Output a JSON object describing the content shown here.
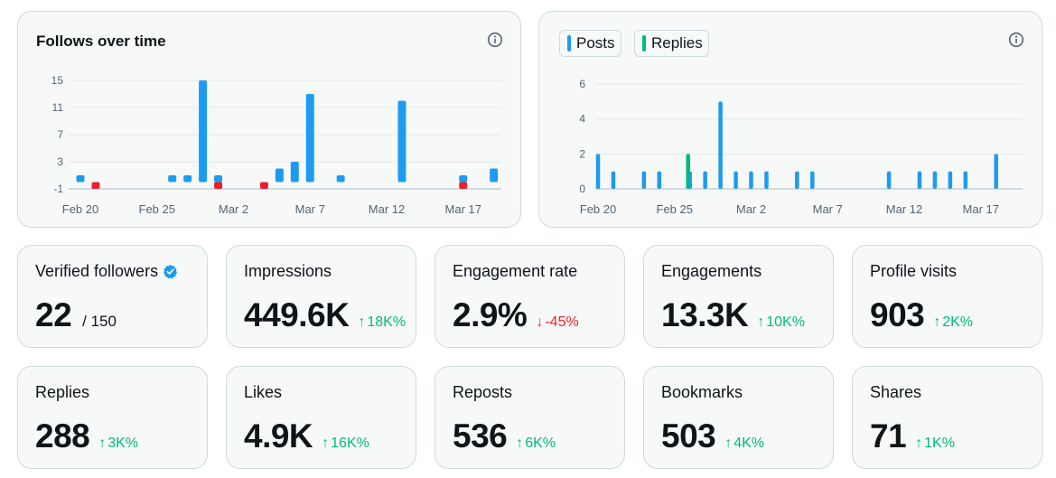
{
  "colors": {
    "posts": "#1d9bf0",
    "replies": "#00ba7c",
    "negative": "#e8202e",
    "positive_delta": "#00ba7c",
    "negative_delta": "#f4212e"
  },
  "follows_chart": {
    "title": "Follows over time",
    "info_icon": "info-icon",
    "chart_data": {
      "type": "bar",
      "title": "Follows over time",
      "x_tick_labels": [
        "Feb 20",
        "Feb 25",
        "Mar 2",
        "Mar 7",
        "Mar 12",
        "Mar 17"
      ],
      "y_ticks": [
        15,
        11,
        7,
        3,
        -1
      ],
      "ylim": [
        -1,
        15
      ],
      "days": 30,
      "series": [
        {
          "name": "Follows",
          "color": "#1d9bf0",
          "values": [
            1,
            0,
            0,
            0,
            0,
            0,
            1,
            1,
            15,
            1,
            0,
            0,
            0,
            2,
            3,
            13,
            0,
            1,
            0,
            0,
            0,
            12,
            0,
            0,
            0,
            1,
            0,
            2,
            0,
            0
          ]
        },
        {
          "name": "Unfollows",
          "color": "#e8202e",
          "values": [
            0,
            -1,
            0,
            0,
            0,
            0,
            0,
            0,
            0,
            -1,
            0,
            0,
            -1,
            0,
            0,
            0,
            0,
            0,
            0,
            0,
            0,
            0,
            0,
            0,
            0,
            -1,
            0,
            0,
            0,
            0
          ]
        }
      ]
    }
  },
  "posts_chart": {
    "legend": [
      {
        "label": "Posts",
        "color": "#1d9bf0"
      },
      {
        "label": "Replies",
        "color": "#00ba7c"
      }
    ],
    "info_icon": "info-icon",
    "chart_data": {
      "type": "bar",
      "x_tick_labels": [
        "Feb 20",
        "Feb 25",
        "Mar 2",
        "Mar 7",
        "Mar 12",
        "Mar 17"
      ],
      "y_ticks": [
        6,
        4,
        2,
        0
      ],
      "ylim": [
        0,
        6
      ],
      "days": 30,
      "series": [
        {
          "name": "Posts",
          "color": "#1d9bf0",
          "values": [
            2,
            1,
            0,
            1,
            1,
            0,
            1,
            1,
            5,
            1,
            1,
            1,
            0,
            1,
            1,
            0,
            0,
            0,
            0,
            1,
            0,
            1,
            1,
            1,
            1,
            0,
            2,
            0,
            0,
            0
          ]
        },
        {
          "name": "Replies",
          "color": "#00ba7c",
          "values": [
            0,
            0,
            0,
            0,
            0,
            0,
            2,
            0,
            0,
            0,
            0,
            0,
            0,
            0,
            0,
            0,
            0,
            0,
            0,
            0,
            0,
            0,
            0,
            0,
            0,
            0,
            0,
            0,
            0,
            0
          ]
        }
      ]
    }
  },
  "stats_row1": [
    {
      "label": "Verified followers",
      "value": "22",
      "suffix": "/ 150",
      "verified": true
    },
    {
      "label": "Impressions",
      "value": "449.6K",
      "delta": "18K%",
      "direction": "up",
      "arrow": "↑"
    },
    {
      "label": "Engagement rate",
      "value": "2.9%",
      "delta": "-45%",
      "direction": "down",
      "arrow": "↓"
    },
    {
      "label": "Engagements",
      "value": "13.3K",
      "delta": "10K%",
      "direction": "up",
      "arrow": "↑"
    },
    {
      "label": "Profile visits",
      "value": "903",
      "delta": "2K%",
      "direction": "up",
      "arrow": "↑"
    }
  ],
  "stats_row2": [
    {
      "label": "Replies",
      "value": "288",
      "delta": "3K%",
      "direction": "up",
      "arrow": "↑"
    },
    {
      "label": "Likes",
      "value": "4.9K",
      "delta": "16K%",
      "direction": "up",
      "arrow": "↑"
    },
    {
      "label": "Reposts",
      "value": "536",
      "delta": "6K%",
      "direction": "up",
      "arrow": "↑"
    },
    {
      "label": "Bookmarks",
      "value": "503",
      "delta": "4K%",
      "direction": "up",
      "arrow": "↑"
    },
    {
      "label": "Shares",
      "value": "71",
      "delta": "1K%",
      "direction": "up",
      "arrow": "↑"
    }
  ]
}
